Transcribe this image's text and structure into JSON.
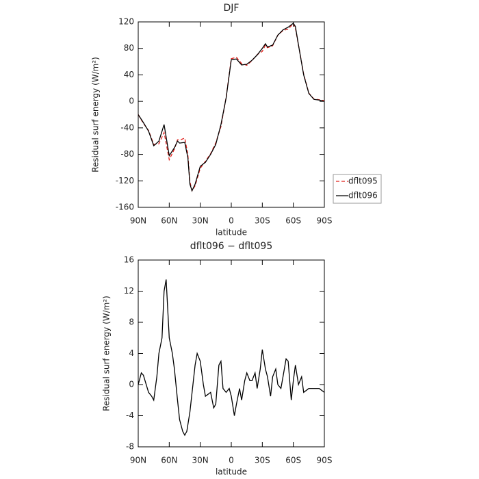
{
  "chart_data": [
    {
      "type": "line",
      "title": "DJF",
      "xlabel": "latitude",
      "ylabel": "Residual surf energy (W/m²)",
      "x": [
        90,
        85,
        80,
        75,
        70,
        65,
        60,
        55,
        52,
        50,
        45,
        42,
        40,
        38,
        35,
        30,
        25,
        20,
        15,
        10,
        5,
        0,
        -5,
        -10,
        -15,
        -20,
        -25,
        -30,
        -33,
        -35,
        -40,
        -45,
        -50,
        -55,
        -60,
        -62,
        -65,
        -70,
        -75,
        -80,
        -85,
        -90
      ],
      "series": [
        {
          "name": "dflt095",
          "color": "#e0201b",
          "dash": true,
          "values": [
            -20,
            -33.2,
            -44,
            -65,
            -64,
            -47,
            -88,
            -72,
            -58,
            -58.5,
            -55.5,
            -80,
            -121.5,
            -135,
            -127.5,
            -101,
            -90.5,
            -79,
            -62.5,
            -38,
            6,
            64.5,
            66.5,
            57,
            54.5,
            61.5,
            70.5,
            75.5,
            85,
            81,
            84,
            100,
            107,
            109,
            117.5,
            110.5,
            85,
            41,
            12.5,
            3.5,
            2.5,
            1
          ]
        },
        {
          "name": "dflt096",
          "color": "#000000",
          "dash": false,
          "values": [
            -20,
            -32,
            -45,
            -67,
            -60,
            -35,
            -82,
            -70,
            -60,
            -63,
            -62,
            -85,
            -125,
            -135,
            -125,
            -98,
            -92,
            -80,
            -65,
            -35,
            5,
            63,
            64,
            55,
            56,
            62,
            70,
            80,
            87,
            82,
            85,
            100,
            108,
            112,
            118,
            113,
            85,
            40,
            12,
            3,
            2,
            0
          ]
        }
      ],
      "xlim": [
        90,
        -90
      ],
      "xticks": [
        {
          "value": 90,
          "label": "90N"
        },
        {
          "value": 60,
          "label": "60N"
        },
        {
          "value": 30,
          "label": "30N"
        },
        0,
        {
          "value": -30,
          "label": "30S"
        },
        {
          "value": -60,
          "label": "60S"
        },
        {
          "value": -90,
          "label": "90S"
        }
      ],
      "ylim": [
        -160,
        120
      ],
      "yticks": [
        -160,
        -120,
        -80,
        -40,
        0,
        40,
        80,
        120
      ],
      "legend": "right"
    },
    {
      "type": "line",
      "title": "dflt096 − dflt095",
      "xlabel": "latitude",
      "ylabel": "Residual surf energy (W/m²)",
      "x": [
        90,
        87,
        85,
        80,
        77,
        75,
        72,
        70,
        67,
        65,
        63,
        60,
        57,
        55,
        52,
        50,
        47,
        45,
        43,
        40,
        35,
        33,
        30,
        27,
        25,
        20,
        17,
        15,
        12,
        10,
        8,
        5,
        2,
        0,
        -3,
        -5,
        -8,
        -10,
        -13,
        -15,
        -18,
        -20,
        -23,
        -25,
        -28,
        -30,
        -33,
        -35,
        -38,
        -40,
        -43,
        -45,
        -48,
        -50,
        -53,
        -55,
        -58,
        -60,
        -62,
        -65,
        -68,
        -70,
        -75,
        -80,
        -85,
        -90
      ],
      "series": [
        {
          "name": "dflt096 − dflt095",
          "color": "#000000",
          "dash": false,
          "values": [
            0,
            1.5,
            1.2,
            -1,
            -1.5,
            -2,
            1,
            4,
            6,
            12,
            13.5,
            6,
            4,
            2,
            -2,
            -4.5,
            -6,
            -6.5,
            -6,
            -3.5,
            2.5,
            4,
            3,
            0,
            -1.5,
            -1,
            -3,
            -2.5,
            2.5,
            3,
            -0.5,
            -1,
            -0.5,
            -1.5,
            -4,
            -2.5,
            -0.5,
            -2,
            0.5,
            1.5,
            0.5,
            0.5,
            1.5,
            -0.5,
            2,
            4.5,
            2,
            1,
            -1.5,
            1,
            2,
            0,
            -0.5,
            1,
            3.3,
            3,
            -2,
            0.5,
            2.5,
            0,
            1,
            -1,
            -0.5,
            -0.5,
            -0.5,
            -1
          ]
        }
      ],
      "xlim": [
        90,
        -90
      ],
      "xticks": [
        {
          "value": 90,
          "label": "90N"
        },
        {
          "value": 60,
          "label": "60N"
        },
        {
          "value": 30,
          "label": "30N"
        },
        0,
        {
          "value": -30,
          "label": "30S"
        },
        {
          "value": -60,
          "label": "60S"
        },
        {
          "value": -90,
          "label": "90S"
        }
      ],
      "ylim": [
        -8,
        16
      ],
      "yticks": [
        -8,
        -4,
        0,
        4,
        8,
        12,
        16
      ]
    }
  ]
}
